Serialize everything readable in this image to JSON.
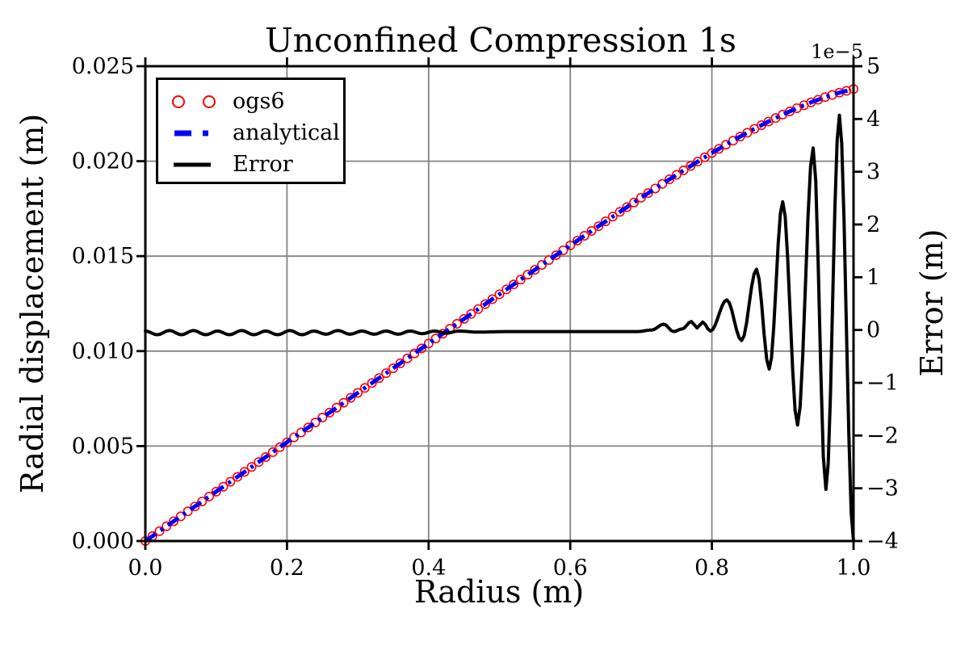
{
  "chart_data": {
    "type": "line",
    "title": "Unconfined Compression 1s",
    "xlabel": "Radius (m)",
    "ylabel_left": "Radial displacement (m)",
    "ylabel_right": "Error (m)",
    "offset_text_right_axis": "1e−5",
    "xlim": [
      0.0,
      1.0
    ],
    "ylim_left": [
      0.0,
      0.025
    ],
    "ylim_right_1e5": [
      -4,
      5
    ],
    "xticks": [
      0.0,
      0.2,
      0.4,
      0.6,
      0.8,
      1.0
    ],
    "xticklabels": [
      "0.0",
      "0.2",
      "0.4",
      "0.6",
      "0.8",
      "1.0"
    ],
    "yticks_left": [
      0.0,
      0.005,
      0.01,
      0.015,
      0.02,
      0.025
    ],
    "yticklabels_left": [
      "0.000",
      "0.005",
      "0.010",
      "0.015",
      "0.020",
      "0.025"
    ],
    "yticks_right_1e5": [
      5,
      4,
      3,
      2,
      1,
      0,
      -1,
      -2,
      -3,
      -4
    ],
    "yticklabels_right": [
      "5",
      "4",
      "3",
      "2",
      "1",
      "0",
      "−1",
      "−2",
      "−3",
      "−4"
    ],
    "grid": true,
    "legend_position": "upper left",
    "colors": {
      "ogs6": "#ff0000",
      "analytical": "#0000ff",
      "error": "#000000",
      "grid": "#848484"
    },
    "legend": [
      {
        "label": "ogs6",
        "marker": "two-circles"
      },
      {
        "label": "analytical",
        "marker": "dash-dot"
      },
      {
        "label": "Error",
        "marker": "solid-line"
      }
    ],
    "series": {
      "radius_step": 0.01,
      "displacement_m": [
        0.0,
        0.00026,
        0.00052,
        0.00078,
        0.00104,
        0.0013,
        0.00156,
        0.00182,
        0.00208,
        0.00234,
        0.0026,
        0.00286,
        0.00312,
        0.00338,
        0.00364,
        0.0039,
        0.00416,
        0.00442,
        0.00468,
        0.00494,
        0.0052,
        0.00546,
        0.00572,
        0.00598,
        0.00624,
        0.0065,
        0.00676,
        0.00702,
        0.00728,
        0.00754,
        0.0078,
        0.00806,
        0.00832,
        0.00858,
        0.00884,
        0.0091,
        0.00936,
        0.00962,
        0.00988,
        0.01014,
        0.010399,
        0.010659,
        0.010918,
        0.011178,
        0.011437,
        0.011697,
        0.011956,
        0.012215,
        0.012474,
        0.012733,
        0.012991,
        0.01325,
        0.013508,
        0.013766,
        0.014024,
        0.014282,
        0.014539,
        0.014796,
        0.015052,
        0.015308,
        0.015563,
        0.015818,
        0.016072,
        0.016325,
        0.016578,
        0.01683,
        0.017081,
        0.01733,
        0.017579,
        0.017826,
        0.018073,
        0.018317,
        0.018561,
        0.018802,
        0.019042,
        0.019279,
        0.019515,
        0.019747,
        0.019979,
        0.020205,
        0.020431,
        0.020651,
        0.02087,
        0.021083,
        0.021295,
        0.021499,
        0.021702,
        0.021896,
        0.022089,
        0.022271,
        0.022453,
        0.022622,
        0.022791,
        0.022945,
        0.023099,
        0.023236,
        0.023373,
        0.023491,
        0.023608,
        0.023704,
        0.0238
      ],
      "error_1e5_keypoints": [
        [
          0.0,
          -0.02
        ],
        [
          0.017,
          -0.09
        ],
        [
          0.034,
          -0.01
        ],
        [
          0.051,
          -0.09
        ],
        [
          0.068,
          -0.01
        ],
        [
          0.085,
          -0.09
        ],
        [
          0.102,
          -0.02
        ],
        [
          0.119,
          -0.09
        ],
        [
          0.136,
          -0.01
        ],
        [
          0.153,
          -0.09
        ],
        [
          0.17,
          -0.02
        ],
        [
          0.187,
          -0.09
        ],
        [
          0.204,
          -0.01
        ],
        [
          0.221,
          -0.09
        ],
        [
          0.238,
          -0.02
        ],
        [
          0.255,
          -0.08
        ],
        [
          0.272,
          -0.01
        ],
        [
          0.289,
          -0.08
        ],
        [
          0.306,
          -0.02
        ],
        [
          0.323,
          -0.08
        ],
        [
          0.34,
          -0.02
        ],
        [
          0.357,
          -0.08
        ],
        [
          0.374,
          -0.02
        ],
        [
          0.391,
          -0.07
        ],
        [
          0.408,
          -0.02
        ],
        [
          0.425,
          -0.06
        ],
        [
          0.442,
          -0.02
        ],
        [
          0.47,
          -0.04
        ],
        [
          0.51,
          -0.03
        ],
        [
          0.56,
          -0.03
        ],
        [
          0.61,
          -0.03
        ],
        [
          0.66,
          -0.03
        ],
        [
          0.695,
          -0.03
        ],
        [
          0.715,
          0.0
        ],
        [
          0.732,
          0.11
        ],
        [
          0.746,
          -0.03
        ],
        [
          0.758,
          0.02
        ],
        [
          0.771,
          0.16
        ],
        [
          0.779,
          0.04
        ],
        [
          0.787,
          0.15
        ],
        [
          0.798,
          -0.02
        ],
        [
          0.821,
          0.57
        ],
        [
          0.842,
          -0.2
        ],
        [
          0.863,
          1.15
        ],
        [
          0.881,
          -0.74
        ],
        [
          0.9,
          2.43
        ],
        [
          0.921,
          -1.8
        ],
        [
          0.943,
          3.45
        ],
        [
          0.961,
          -3.02
        ],
        [
          0.98,
          4.07
        ],
        [
          1.0,
          -4.0
        ]
      ]
    }
  }
}
